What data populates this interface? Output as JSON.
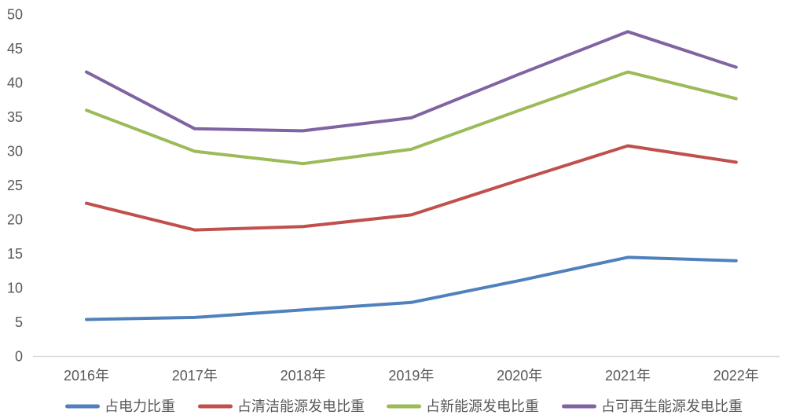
{
  "chart_data": {
    "type": "line",
    "title": "",
    "xlabel": "",
    "ylabel": "",
    "categories": [
      "2016年",
      "2017年",
      "2018年",
      "2019年",
      "2020年",
      "2021年",
      "2022年"
    ],
    "series": [
      {
        "name": "占电力比重",
        "color": "#4F81BD",
        "values": [
          5.4,
          5.7,
          6.8,
          7.9,
          11.1,
          14.5,
          14.0
        ]
      },
      {
        "name": "占清洁能源发电比重",
        "color": "#C0504D",
        "values": [
          22.4,
          18.5,
          19.0,
          20.7,
          25.8,
          30.8,
          28.4
        ]
      },
      {
        "name": "占新能源发电比重",
        "color": "#9BBB59",
        "values": [
          36.0,
          30.0,
          28.2,
          30.3,
          36.0,
          41.6,
          37.7
        ]
      },
      {
        "name": "占可再生能源发电比重",
        "color": "#8064A2",
        "values": [
          41.6,
          33.3,
          33.0,
          34.9,
          41.3,
          47.5,
          42.3
        ]
      }
    ],
    "ylim": [
      0,
      50
    ],
    "ytick_step": 5,
    "ytick_labels": [
      "0",
      "5",
      "10",
      "15",
      "20",
      "25",
      "30",
      "35",
      "40",
      "45",
      "50"
    ],
    "grid": false,
    "legend_position": "bottom",
    "axis_text_color": "#595959",
    "axis_line_color": "#D9D9D9"
  }
}
